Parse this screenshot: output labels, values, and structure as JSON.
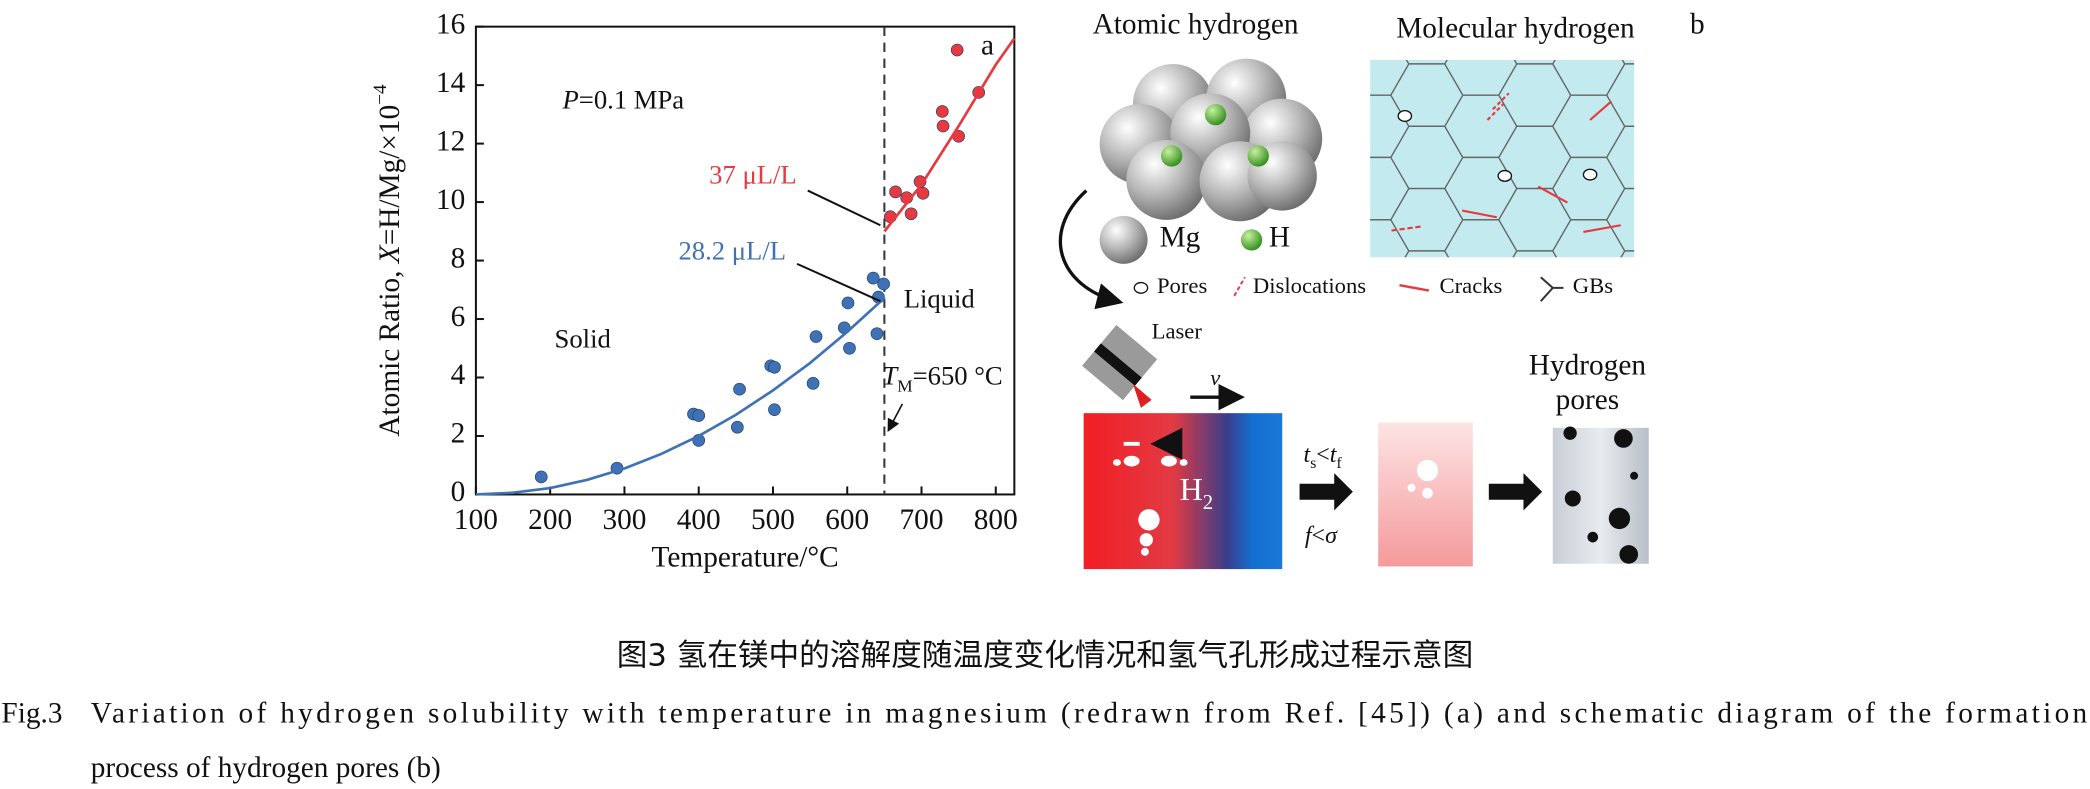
{
  "chart_data": {
    "type": "scatter",
    "panel_label": "a",
    "xlabel": "Temperature/°C",
    "ylabel": [
      {
        "text": "Atomic Ratio, "
      },
      {
        "text": "X",
        "italic": true
      },
      {
        "text": "=H/Mg/×10"
      },
      {
        "text": "−4",
        "sup": true
      }
    ],
    "xlim": [
      100,
      825
    ],
    "ylim": [
      0,
      16
    ],
    "xticks": [
      100,
      200,
      300,
      400,
      500,
      600,
      700,
      800
    ],
    "yticks": [
      0,
      2,
      4,
      6,
      8,
      10,
      12,
      14,
      16
    ],
    "melting_point": 650,
    "series": [
      {
        "mode": "markers",
        "color": "#3f72b4",
        "x": [
          188,
          290,
          393,
          400,
          400,
          455,
          452,
          497,
          502,
          502,
          558,
          554,
          596,
          601,
          603,
          635,
          642,
          640,
          649
        ],
        "values": [
          0.6,
          0.9,
          2.75,
          2.7,
          1.85,
          3.6,
          2.3,
          4.4,
          4.35,
          2.9,
          5.4,
          3.8,
          5.7,
          6.55,
          5.0,
          7.4,
          6.75,
          5.5,
          7.2
        ]
      },
      {
        "mode": "markers",
        "color": "#e8393e",
        "x": [
          748,
          728,
          729,
          750,
          777,
          665,
          680,
          698,
          702,
          686,
          658
        ],
        "values": [
          15.2,
          13.1,
          12.6,
          12.25,
          13.75,
          10.35,
          10.15,
          10.7,
          10.3,
          9.6,
          9.5
        ]
      },
      {
        "mode": "line",
        "color": "#3f72b4",
        "x": [
          100,
          150,
          200,
          250,
          300,
          350,
          400,
          450,
          500,
          550,
          600,
          650
        ],
        "values": [
          0,
          0.06,
          0.22,
          0.5,
          0.89,
          1.39,
          2.0,
          2.72,
          3.56,
          4.5,
          5.56,
          6.72
        ]
      },
      {
        "mode": "line",
        "color": "#e8393e",
        "x": [
          650,
          700,
          750,
          800,
          825
        ],
        "values": [
          9.0,
          10.6,
          12.6,
          14.7,
          15.6
        ]
      }
    ],
    "annotations": {
      "pressure": [
        {
          "text": "P",
          "italic": true
        },
        {
          "text": "=0.1 MPa"
        }
      ],
      "liquid_solubility": {
        "text": "37 μL/L",
        "color": "#e8393e"
      },
      "solid_solubility": {
        "text": "28.2 μL/L",
        "color": "#3f72b4"
      },
      "solid": "Solid",
      "liquid": "Liquid",
      "melting": [
        {
          "text": "T",
          "italic": true
        },
        {
          "text": "M",
          "sub": true
        },
        {
          "text": "=650 °C"
        }
      ]
    }
  },
  "schematic": {
    "panel_label": "b",
    "atomic_title": "Atomic hydrogen",
    "molecular_title": "Molecular hydrogen",
    "mg_label": "Mg",
    "h_label": "H",
    "legend": [
      "Pores",
      "Dislocations",
      "Cracks",
      "GBs"
    ],
    "laser": "Laser",
    "velocity": "v",
    "h2": [
      {
        "text": "H"
      },
      {
        "text": "2",
        "sub": true
      }
    ],
    "condition_time": [
      {
        "text": "t",
        "italic": true
      },
      {
        "text": "s",
        "sub": true
      },
      {
        "text": "<"
      },
      {
        "text": "t",
        "italic": true
      },
      {
        "text": "f",
        "sub": true
      }
    ],
    "condition_force": [
      {
        "text": "f",
        "italic": true
      },
      {
        "text": "<"
      },
      {
        "text": "σ",
        "italic": true
      }
    ],
    "result_title": [
      "Hydrogen",
      "pores"
    ]
  },
  "caption": {
    "chinese": "图3  氢在镁中的溶解度随温度变化情况和氢气孔形成过程示意图",
    "figure_label": "Fig.3",
    "english_lines": [
      "Variation of hydrogen solubility with temperature in magnesium (redrawn from Ref. [45]) (a) and schematic diagram of the formation",
      "process of hydrogen pores (b)"
    ]
  }
}
